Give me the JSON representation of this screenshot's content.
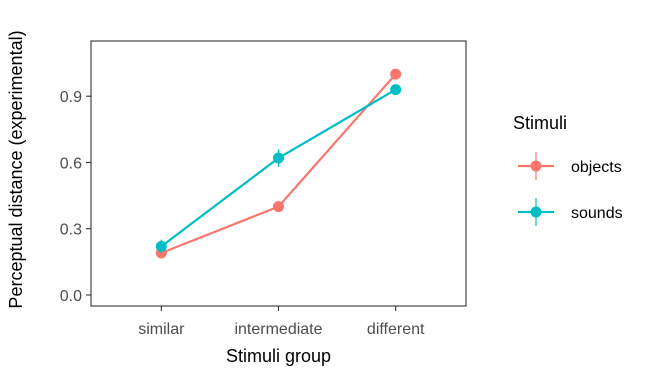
{
  "chart_data": {
    "type": "line",
    "title": "",
    "xlabel": "Stimuli group",
    "ylabel": "Perceptual distance (experimental)",
    "categories": [
      "similar",
      "intermediate",
      "different"
    ],
    "ylim": [
      -0.05,
      1.15
    ],
    "yticks": [
      0.0,
      0.3,
      0.6,
      0.9
    ],
    "ytick_labels": [
      "0.0",
      "0.3",
      "0.6",
      "0.9"
    ],
    "grid": false,
    "legend": {
      "title": "Stimuli",
      "placement": "right"
    },
    "series": [
      {
        "name": "objects",
        "color": "#F8766D",
        "values": [
          0.19,
          0.4,
          1.0
        ],
        "error": [
          0.01,
          0.01,
          0.01
        ]
      },
      {
        "name": "sounds",
        "color": "#00BFC4",
        "values": [
          0.22,
          0.62,
          0.93
        ],
        "error": [
          0.03,
          0.04,
          0.02
        ]
      }
    ]
  }
}
